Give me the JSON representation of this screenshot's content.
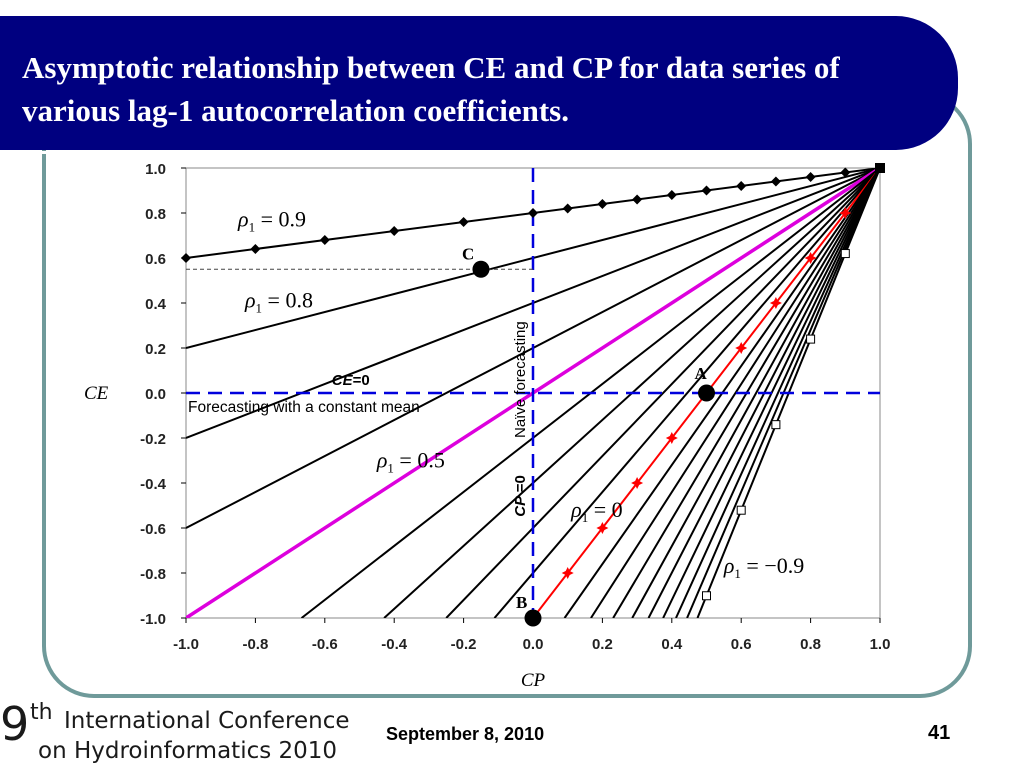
{
  "slide": {
    "title": "Asymptotic relationship between CE and CP for data series of various lag-1 autocorrelation coefficients.",
    "date": "September 8, 2010",
    "page_number": "41",
    "logo": {
      "nine": "9",
      "superscript": "th",
      "line1": "International Conference",
      "line2": "on Hydroinformatics 2010"
    },
    "colors": {
      "banner": "#000080",
      "frame": "#6f9a9a",
      "rho0_line": "#ff0000",
      "diagonal": "#dd00dd",
      "dashed_axis": "#0000dd"
    }
  },
  "chart_data": {
    "type": "line",
    "xlabel": "CP",
    "ylabel": "CE",
    "xlim": [
      -1.0,
      1.0
    ],
    "ylim": [
      -1.0,
      1.0
    ],
    "xticks": [
      "-1.0",
      "-0.8",
      "-0.6",
      "-0.4",
      "-0.2",
      "0.0",
      "0.2",
      "0.4",
      "0.6",
      "0.8",
      "1.0"
    ],
    "yticks": [
      "1.0",
      "0.8",
      "0.6",
      "0.4",
      "0.2",
      "0.0",
      "-0.2",
      "-0.4",
      "-0.6",
      "-0.8",
      "-1.0"
    ],
    "series": [
      {
        "rho": 0.9,
        "points": [
          [
            -1.0,
            0.6
          ],
          [
            1.0,
            1.0
          ]
        ],
        "marker": "diamond",
        "marker_x": [
          -1.0,
          -0.8,
          -0.6,
          -0.4,
          -0.2,
          0.0,
          0.1,
          0.2,
          0.3,
          0.4,
          0.5,
          0.6,
          0.7,
          0.8,
          0.9
        ]
      },
      {
        "rho": 0.8,
        "points": [
          [
            -1.0,
            0.2
          ],
          [
            1.0,
            1.0
          ]
        ]
      },
      {
        "rho": 0.7,
        "points": [
          [
            -1.0,
            -0.2
          ],
          [
            1.0,
            1.0
          ]
        ]
      },
      {
        "rho": 0.6,
        "points": [
          [
            -1.0,
            -0.6
          ],
          [
            1.0,
            1.0
          ]
        ]
      },
      {
        "rho": 0.5,
        "points": [
          [
            -1.0,
            -1.0
          ],
          [
            1.0,
            1.0
          ]
        ],
        "color": "#dd00dd"
      },
      {
        "rho": 0.4,
        "points": [
          [
            -0.667,
            -1.0
          ],
          [
            1.0,
            1.0
          ]
        ]
      },
      {
        "rho": 0.3,
        "points": [
          [
            -0.429,
            -1.0
          ],
          [
            1.0,
            1.0
          ]
        ]
      },
      {
        "rho": 0.2,
        "points": [
          [
            -0.25,
            -1.0
          ],
          [
            1.0,
            1.0
          ]
        ]
      },
      {
        "rho": 0.1,
        "points": [
          [
            -0.111,
            -1.0
          ],
          [
            1.0,
            1.0
          ]
        ]
      },
      {
        "rho": 0.0,
        "points": [
          [
            0.0,
            -1.0
          ],
          [
            1.0,
            1.0
          ]
        ],
        "color": "#ff0000",
        "marker": "star",
        "marker_x": [
          0.1,
          0.2,
          0.3,
          0.4,
          0.5,
          0.6,
          0.7,
          0.8,
          0.9
        ]
      },
      {
        "rho": -0.1,
        "points": [
          [
            0.091,
            -1.0
          ],
          [
            1.0,
            1.0
          ]
        ]
      },
      {
        "rho": -0.2,
        "points": [
          [
            0.167,
            -1.0
          ],
          [
            1.0,
            1.0
          ]
        ]
      },
      {
        "rho": -0.3,
        "points": [
          [
            0.231,
            -1.0
          ],
          [
            1.0,
            1.0
          ]
        ]
      },
      {
        "rho": -0.4,
        "points": [
          [
            0.286,
            -1.0
          ],
          [
            1.0,
            1.0
          ]
        ]
      },
      {
        "rho": -0.5,
        "points": [
          [
            0.333,
            -1.0
          ],
          [
            1.0,
            1.0
          ]
        ]
      },
      {
        "rho": -0.6,
        "points": [
          [
            0.375,
            -1.0
          ],
          [
            1.0,
            1.0
          ]
        ]
      },
      {
        "rho": -0.7,
        "points": [
          [
            0.412,
            -1.0
          ],
          [
            1.0,
            1.0
          ]
        ]
      },
      {
        "rho": -0.8,
        "points": [
          [
            0.444,
            -1.0
          ],
          [
            1.0,
            1.0
          ]
        ]
      },
      {
        "rho": -0.9,
        "points": [
          [
            0.474,
            -1.0
          ],
          [
            1.0,
            1.0
          ]
        ],
        "marker": "square",
        "marker_x": [
          0.5,
          0.6,
          0.7,
          0.8,
          0.9
        ]
      }
    ],
    "curve_labels": [
      {
        "rho_text": "0.9",
        "anchor": [
          -0.85,
          0.74
        ]
      },
      {
        "rho_text": "0.8",
        "anchor": [
          -0.83,
          0.38
        ]
      },
      {
        "rho_text": "0.5",
        "anchor": [
          -0.45,
          -0.33
        ]
      },
      {
        "rho_text": "0",
        "anchor": [
          0.11,
          -0.55
        ]
      },
      {
        "rho_text": "−0.9",
        "anchor": [
          0.55,
          -0.8
        ]
      }
    ],
    "reference_lines": [
      {
        "orientation": "horizontal",
        "value": 0.0,
        "style": "dashed",
        "color": "#0000dd",
        "label": "CE=0",
        "sublabel": "Forecasting with a constant mean"
      },
      {
        "orientation": "vertical",
        "value": 0.0,
        "style": "dashed",
        "color": "#0000dd",
        "label": "CP=0",
        "sublabel": "Naïve forecasting"
      }
    ],
    "points": [
      {
        "label": "A",
        "x": 0.5,
        "y": 0.0
      },
      {
        "label": "B",
        "x": 0.0,
        "y": -1.0
      },
      {
        "label": "C",
        "x": -0.15,
        "y": 0.55
      }
    ],
    "grid": false,
    "legend": "none"
  }
}
